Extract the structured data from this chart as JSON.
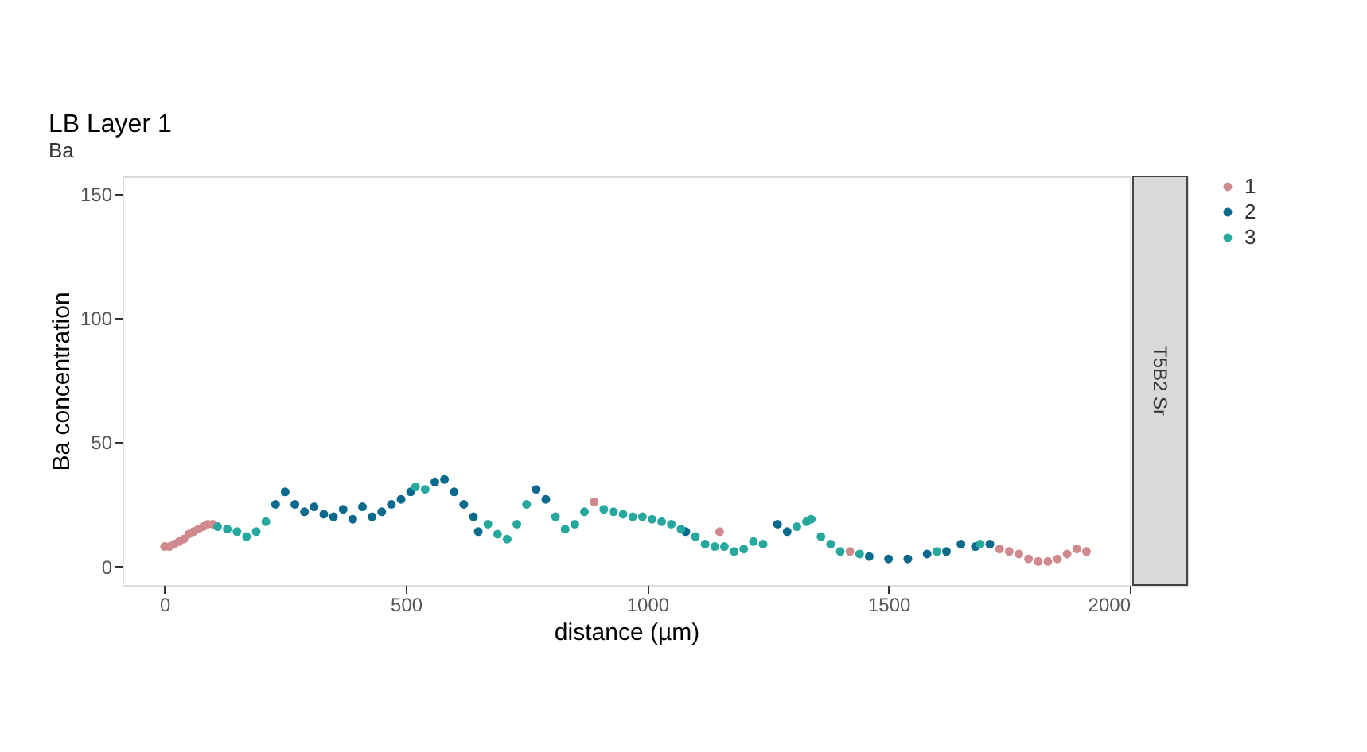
{
  "chart_data": {
    "type": "scatter",
    "title": "LB Layer 1",
    "subtitle": "Ba",
    "xlabel": "distance (µm)",
    "ylabel": "Ba concentration",
    "annotations": [
      "T5B2 Sr"
    ],
    "series": [
      {
        "name": "1",
        "color": "#d08a8e",
        "x": [
          0,
          10,
          20,
          30,
          40,
          50,
          60,
          70,
          80,
          90,
          100,
          890,
          1150,
          1420,
          1730,
          1750,
          1770,
          1790,
          1810,
          1830,
          1850,
          1870,
          1890,
          1910
        ],
        "values": [
          8,
          8,
          9,
          10,
          11,
          13,
          14,
          15,
          16,
          17,
          17,
          26,
          14,
          6,
          7,
          6,
          5,
          3,
          2,
          2,
          3,
          5,
          7,
          6
        ]
      },
      {
        "name": "2",
        "color": "#0b6a8c",
        "x": [
          230,
          250,
          270,
          290,
          310,
          330,
          350,
          370,
          390,
          410,
          430,
          450,
          470,
          490,
          510,
          560,
          580,
          600,
          620,
          640,
          650,
          770,
          790,
          1080,
          1270,
          1290,
          1460,
          1500,
          1540,
          1580,
          1620,
          1650,
          1680,
          1710
        ],
        "values": [
          25,
          30,
          25,
          22,
          24,
          21,
          20,
          23,
          19,
          24,
          20,
          22,
          25,
          27,
          30,
          34,
          35,
          30,
          25,
          20,
          14,
          31,
          27,
          14,
          17,
          14,
          4,
          3,
          3,
          5,
          6,
          9,
          8,
          9
        ]
      },
      {
        "name": "3",
        "color": "#26a89e",
        "x": [
          110,
          130,
          150,
          170,
          190,
          210,
          520,
          540,
          670,
          690,
          710,
          730,
          750,
          810,
          830,
          850,
          870,
          910,
          930,
          950,
          970,
          990,
          1010,
          1030,
          1050,
          1070,
          1100,
          1120,
          1140,
          1160,
          1180,
          1200,
          1220,
          1240,
          1310,
          1330,
          1340,
          1360,
          1380,
          1400,
          1440,
          1600,
          1690
        ],
        "values": [
          16,
          15,
          14,
          12,
          14,
          18,
          32,
          31,
          17,
          13,
          11,
          17,
          25,
          20,
          15,
          17,
          22,
          23,
          22,
          21,
          20,
          20,
          19,
          18,
          17,
          15,
          12,
          9,
          8,
          8,
          6,
          7,
          10,
          9,
          16,
          18,
          19,
          12,
          9,
          6,
          5,
          6,
          9
        ]
      }
    ],
    "xlim": [
      -87,
      2000
    ],
    "xticks": [
      0,
      500,
      1000,
      1500,
      2000
    ],
    "ylim": [
      -7.5,
      157
    ],
    "yticks": [
      0,
      50,
      100,
      150
    ],
    "grid": false,
    "legend": "right",
    "marker": "circle"
  }
}
